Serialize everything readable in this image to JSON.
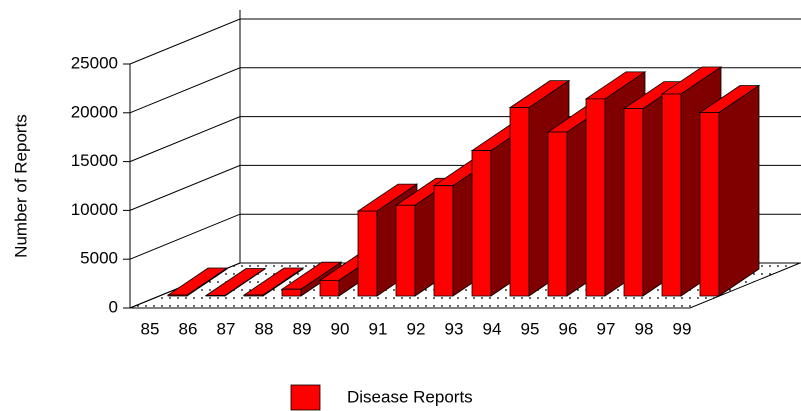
{
  "chart_data": {
    "type": "bar3d",
    "y_axis_label": "Number of Reports",
    "categories": [
      "85",
      "86",
      "87",
      "88",
      "89",
      "90",
      "91",
      "92",
      "93",
      "94",
      "95",
      "96",
      "97",
      "98",
      "99"
    ],
    "series": [
      {
        "name": "Disease Reports",
        "color": "#ff0000",
        "values": [
          100,
          50,
          100,
          700,
          1600,
          8700,
          9300,
          11300,
          14900,
          19300,
          16800,
          20200,
          19200,
          20700,
          18800
        ]
      }
    ],
    "ylim": [
      0,
      25000
    ],
    "yticks": [
      0,
      5000,
      10000,
      15000,
      20000,
      25000
    ],
    "grid": true,
    "legend": "bottom"
  }
}
